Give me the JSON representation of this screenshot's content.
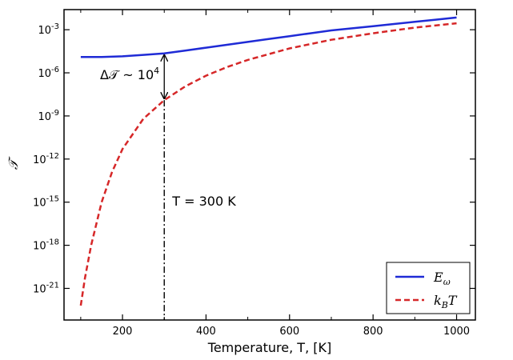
{
  "chart_data": {
    "type": "line",
    "title": "",
    "xlabel": "Temperature, T, [K]",
    "ylabel": "𝒯",
    "xlim": [
      60,
      1045
    ],
    "ylim_log10": [
      -23.2,
      -1.6
    ],
    "yscale": "log",
    "x_ticks": [
      200,
      400,
      600,
      800,
      1000
    ],
    "y_ticks": [
      {
        "exp": -3,
        "base": "10",
        "power": "-3"
      },
      {
        "exp": -6,
        "base": "10",
        "power": "-6"
      },
      {
        "exp": -9,
        "base": "10",
        "power": "-9"
      },
      {
        "exp": -12,
        "base": "10",
        "power": "-12"
      },
      {
        "exp": -15,
        "base": "10",
        "power": "-15"
      },
      {
        "exp": -18,
        "base": "10",
        "power": "-18"
      },
      {
        "exp": -21,
        "base": "10",
        "power": "-21"
      }
    ],
    "series": [
      {
        "name": "E_ω",
        "legend_main": "E",
        "legend_sub": "ω",
        "color": "#1f2bd6",
        "dash": "solid",
        "x": [
          100,
          150,
          200,
          250,
          300,
          350,
          400,
          450,
          500,
          550,
          600,
          650,
          700,
          750,
          800,
          850,
          900,
          950,
          1000
        ],
        "log10": [
          -4.9,
          -4.9,
          -4.85,
          -4.75,
          -4.65,
          -4.45,
          -4.25,
          -4.05,
          -3.85,
          -3.65,
          -3.45,
          -3.25,
          -3.05,
          -2.9,
          -2.75,
          -2.6,
          -2.45,
          -2.3,
          -2.15
        ]
      },
      {
        "name": "k_B T",
        "legend_main": "k",
        "legend_sub": "B",
        "legend_tail": "T",
        "color": "#d62728",
        "dash": "dashed",
        "x": [
          100,
          110,
          125,
          150,
          175,
          200,
          250,
          300,
          350,
          400,
          450,
          500,
          600,
          700,
          800,
          900,
          1000
        ],
        "log10": [
          -22.2,
          -20.3,
          -18.0,
          -15.0,
          -12.9,
          -11.3,
          -9.2,
          -7.9,
          -6.95,
          -6.2,
          -5.6,
          -5.1,
          -4.3,
          -3.7,
          -3.25,
          -2.85,
          -2.55
        ]
      }
    ],
    "annotations": {
      "vline_x": 300,
      "vline_label": "T = 300 K",
      "delta_text": "Δ𝒯 ~ 10",
      "delta_exp": "4",
      "arrow_from_log10": -4.65,
      "arrow_to_log10": -7.9
    },
    "legend_position": "lower-right"
  }
}
